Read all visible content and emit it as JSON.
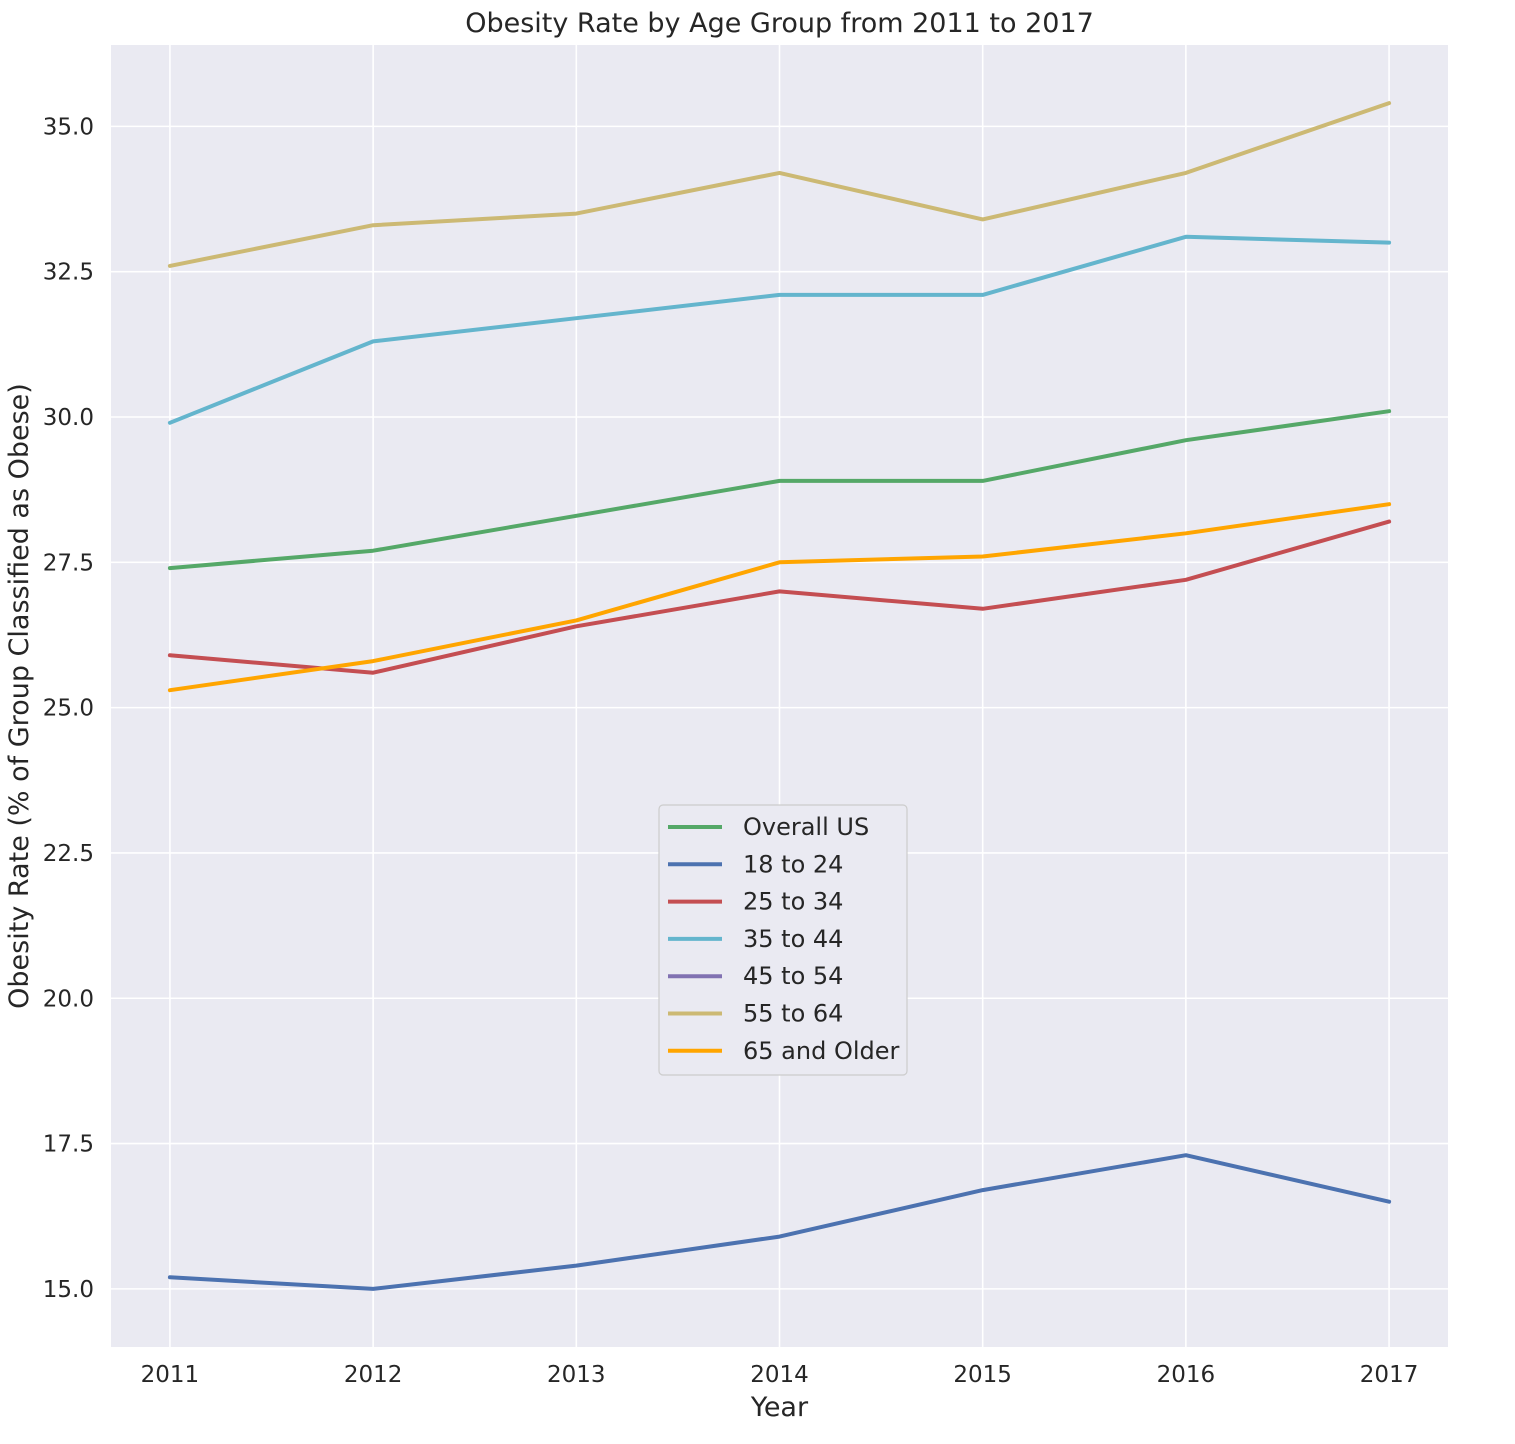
{
  "chart_data": {
    "type": "line",
    "title": "Obesity Rate by Age Group from 2011 to 2017",
    "xlabel": "Year",
    "ylabel": "Obesity Rate (% of Group Classified as Obese)",
    "x": [
      2011,
      2012,
      2013,
      2014,
      2015,
      2016,
      2017
    ],
    "x_tick_labels": [
      "2011",
      "2012",
      "2013",
      "2014",
      "2015",
      "2016",
      "2017"
    ],
    "y_ticks": [
      15.0,
      17.5,
      20.0,
      22.5,
      25.0,
      27.5,
      30.0,
      32.5,
      35.0
    ],
    "y_tick_labels": [
      "15.0",
      "17.5",
      "20.0",
      "22.5",
      "25.0",
      "27.5",
      "30.0",
      "32.5",
      "35.0"
    ],
    "xlim": [
      2010.71,
      2017.29
    ],
    "ylim": [
      14.0,
      36.4
    ],
    "grid": true,
    "legend_position": "center",
    "background_color": "#eaeaf2",
    "grid_color": "#ffffff",
    "series": [
      {
        "name": "Overall US",
        "color": "#55a868",
        "values": [
          27.4,
          27.7,
          28.3,
          28.9,
          28.9,
          29.6,
          30.1
        ]
      },
      {
        "name": "18 to 24",
        "color": "#4c72b0",
        "values": [
          15.2,
          15.0,
          15.4,
          15.9,
          16.7,
          17.3,
          16.5
        ]
      },
      {
        "name": "25 to 34",
        "color": "#c44e52",
        "values": [
          25.9,
          25.6,
          26.4,
          27.0,
          26.7,
          27.2,
          28.2
        ]
      },
      {
        "name": "35 to 44",
        "color": "#64b5cd",
        "values": [
          29.9,
          31.3,
          31.7,
          32.1,
          32.1,
          33.1,
          33.0
        ]
      },
      {
        "name": "45 to 54",
        "color": "#8172b2",
        "values": [
          null,
          null,
          null,
          null,
          null,
          null,
          null
        ]
      },
      {
        "name": "55 to 64",
        "color": "#ccb974",
        "values": [
          32.6,
          33.3,
          33.5,
          34.2,
          33.4,
          34.2,
          35.4
        ]
      },
      {
        "name": "65 and Older",
        "color": "#ffa500",
        "values": [
          25.3,
          25.8,
          26.5,
          27.5,
          27.6,
          28.0,
          28.5
        ]
      }
    ]
  }
}
